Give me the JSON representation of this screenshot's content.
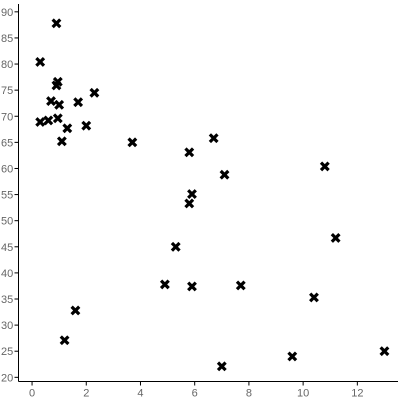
{
  "chart_data": {
    "type": "scatter",
    "title": "",
    "xlabel": "",
    "ylabel": "",
    "xlim": [
      -0.5,
      13.5
    ],
    "ylim": [
      19.2,
      91.5
    ],
    "x_ticks": [
      0,
      2,
      4,
      6,
      8,
      10,
      12
    ],
    "y_ticks": [
      20,
      25,
      30,
      35,
      40,
      45,
      50,
      55,
      60,
      65,
      70,
      75,
      80,
      85,
      90
    ],
    "grid": false,
    "legend": "none",
    "marker": "x",
    "marker_color": "#000000",
    "series": [
      {
        "points": [
          {
            "x": 0.9,
            "y": 87.8
          },
          {
            "x": 0.3,
            "y": 80.4
          },
          {
            "x": 0.95,
            "y": 76.6
          },
          {
            "x": 0.9,
            "y": 75.9
          },
          {
            "x": 2.3,
            "y": 74.5
          },
          {
            "x": 0.7,
            "y": 72.9
          },
          {
            "x": 1.7,
            "y": 72.7
          },
          {
            "x": 1.0,
            "y": 72.2
          },
          {
            "x": 0.95,
            "y": 69.6
          },
          {
            "x": 0.6,
            "y": 69.2
          },
          {
            "x": 0.3,
            "y": 68.9
          },
          {
            "x": 2.0,
            "y": 68.2
          },
          {
            "x": 1.3,
            "y": 67.7
          },
          {
            "x": 1.1,
            "y": 65.2
          },
          {
            "x": 3.7,
            "y": 65.0
          },
          {
            "x": 6.7,
            "y": 65.8
          },
          {
            "x": 5.8,
            "y": 63.1
          },
          {
            "x": 10.8,
            "y": 60.4
          },
          {
            "x": 7.1,
            "y": 58.8
          },
          {
            "x": 5.9,
            "y": 55.1
          },
          {
            "x": 5.8,
            "y": 53.3
          },
          {
            "x": 11.2,
            "y": 46.7
          },
          {
            "x": 5.3,
            "y": 45.0
          },
          {
            "x": 4.9,
            "y": 37.8
          },
          {
            "x": 5.9,
            "y": 37.4
          },
          {
            "x": 7.7,
            "y": 37.6
          },
          {
            "x": 10.4,
            "y": 35.3
          },
          {
            "x": 1.6,
            "y": 32.8
          },
          {
            "x": 1.2,
            "y": 27.1
          },
          {
            "x": 13.0,
            "y": 25.0
          },
          {
            "x": 9.6,
            "y": 24.0
          },
          {
            "x": 7.0,
            "y": 22.1
          }
        ]
      }
    ]
  }
}
